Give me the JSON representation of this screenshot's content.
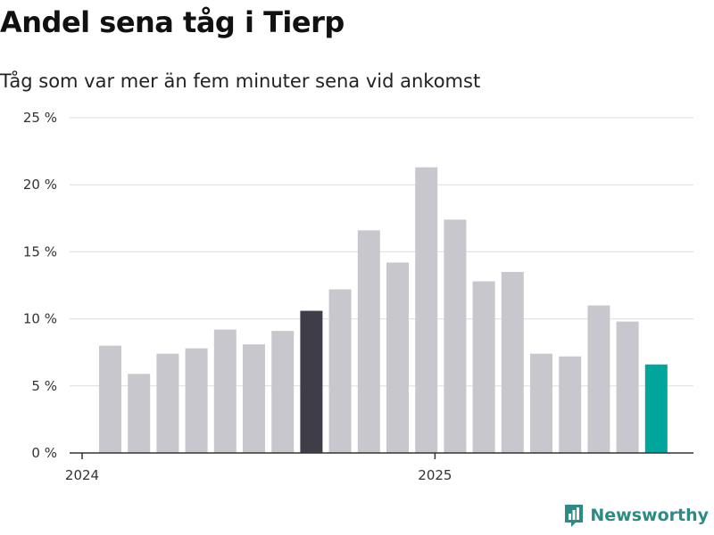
{
  "chart_data": {
    "type": "bar",
    "title": "Andel sena tåg i Tierp",
    "subtitle": "Tåg som var mer än fem minuter sena vid ankomst",
    "xlabel": "",
    "ylabel": "",
    "ylim": [
      0,
      25
    ],
    "yticks": [
      {
        "value": 0,
        "label": "0 %"
      },
      {
        "value": 5,
        "label": "5 %"
      },
      {
        "value": 10,
        "label": "10 %"
      },
      {
        "value": 15,
        "label": "15 %"
      },
      {
        "value": 20,
        "label": "20 %"
      },
      {
        "value": 25,
        "label": "25 %"
      }
    ],
    "xticks": [
      {
        "label": "2024",
        "index": 0
      },
      {
        "label": "2025",
        "index": 12
      }
    ],
    "grid": true,
    "values": [
      8.0,
      5.9,
      7.4,
      7.8,
      9.2,
      8.1,
      9.1,
      10.6,
      12.2,
      16.6,
      14.2,
      21.3,
      17.4,
      12.8,
      13.5,
      7.4,
      7.2,
      11.0,
      9.8,
      6.6
    ],
    "highlight": {
      "7": "#3e3d48",
      "19": "#00a59b"
    },
    "colors": {
      "bar": "#c8c7ce",
      "grid": "#dddddd",
      "axis": "#333333"
    }
  },
  "brand": {
    "name": "Newsworthy",
    "icon": "newsworthy-logo-icon",
    "color": "#2a8c84"
  }
}
